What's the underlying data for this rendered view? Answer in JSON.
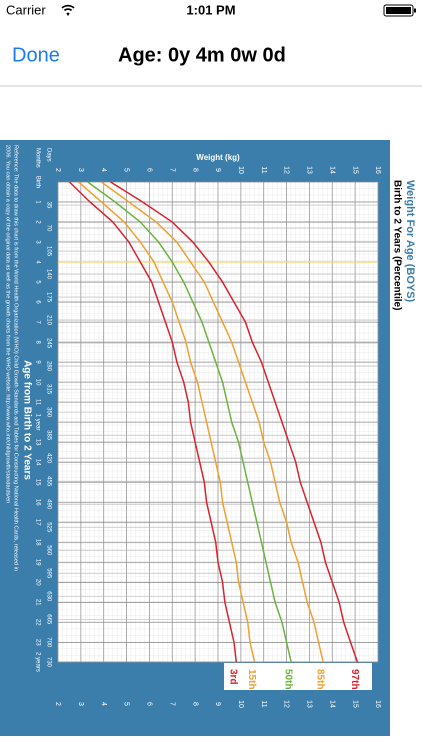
{
  "status_bar": {
    "carrier": "Carrier",
    "time": "1:01 PM"
  },
  "nav": {
    "done": "Done",
    "title": "Age: 0y 4m 0w 0d"
  },
  "chart_data": {
    "type": "line",
    "title": "Weight For Age (BOYS)",
    "subtitle": "Birth to 2 Years (Percentile)",
    "x_label": "Weight (kg)",
    "y_label": "Age from Birth to 2 Years",
    "days_label": "Days",
    "months_label": "Months",
    "note": [
      "Reference: The data to draw this chart is from the World Health Organization (WHO) Child Growth Standards and Tables for Constructing National Health Cards, released in",
      "2006. You can obtain a copy of the original data as well as the growth charts from the WHO website: http://www.who.int/childgrowth/standards/en"
    ],
    "xlim": [
      2,
      16
    ],
    "xticks": [
      2,
      3,
      4,
      5,
      6,
      7,
      8,
      9,
      10,
      11,
      12,
      13,
      14,
      15,
      16
    ],
    "ylim": [
      0,
      730
    ],
    "day_ticks": [
      35,
      70,
      105,
      140,
      175,
      210,
      245,
      280,
      315,
      350,
      385,
      420,
      455,
      490,
      525,
      560,
      595,
      630,
      665,
      700,
      730
    ],
    "month_ticks": [
      {
        "value": 0,
        "label": "Birth"
      },
      {
        "value": 30.4,
        "label": "1"
      },
      {
        "value": 60.9,
        "label": "2"
      },
      {
        "value": 91.3,
        "label": "3"
      },
      {
        "value": 121.7,
        "label": "4"
      },
      {
        "value": 152.2,
        "label": "5"
      },
      {
        "value": 182.6,
        "label": "6"
      },
      {
        "value": 213.1,
        "label": "7"
      },
      {
        "value": 243.5,
        "label": "8"
      },
      {
        "value": 273.9,
        "label": "9"
      },
      {
        "value": 304.4,
        "label": "10"
      },
      {
        "value": 334.8,
        "label": "11"
      },
      {
        "value": 365.2,
        "label": "1 year"
      },
      {
        "value": 395.7,
        "label": "13"
      },
      {
        "value": 426.1,
        "label": "14"
      },
      {
        "value": 456.6,
        "label": "15"
      },
      {
        "value": 487,
        "label": "16"
      },
      {
        "value": 517.4,
        "label": "17"
      },
      {
        "value": 547.9,
        "label": "18"
      },
      {
        "value": 578.3,
        "label": "19"
      },
      {
        "value": 608.8,
        "label": "20"
      },
      {
        "value": 639.2,
        "label": "21"
      },
      {
        "value": 669.6,
        "label": "22"
      },
      {
        "value": 700.1,
        "label": "23"
      },
      {
        "value": 730,
        "label": "2 years"
      }
    ],
    "age_days": [
      0,
      30.4,
      60.9,
      91.3,
      121.7,
      152.2,
      182.6,
      213.1,
      243.5,
      273.9,
      304.4,
      334.8,
      365.2,
      395.7,
      426.1,
      456.6,
      487,
      517.4,
      547.9,
      578.3,
      608.8,
      639.2,
      669.6,
      700.1,
      730
    ],
    "marker": {
      "age": 121.7,
      "color": "#f2d36b"
    },
    "series": [
      {
        "name": "3rd",
        "color": "#d9232e",
        "values": [
          2.5,
          3.4,
          4.4,
          5.1,
          5.6,
          6.1,
          6.4,
          6.7,
          7.0,
          7.2,
          7.5,
          7.7,
          7.8,
          8.0,
          8.2,
          8.4,
          8.5,
          8.7,
          8.9,
          9.0,
          9.2,
          9.3,
          9.5,
          9.7,
          9.8
        ]
      },
      {
        "name": "15th",
        "color": "#f0a030",
        "values": [
          2.9,
          3.9,
          4.9,
          5.6,
          6.2,
          6.6,
          7.0,
          7.3,
          7.6,
          7.8,
          8.1,
          8.3,
          8.5,
          8.7,
          8.9,
          9.1,
          9.2,
          9.4,
          9.6,
          9.8,
          9.9,
          10.1,
          10.3,
          10.4,
          10.6
        ]
      },
      {
        "name": "50th",
        "color": "#6cb33f",
        "values": [
          3.3,
          4.5,
          5.6,
          6.4,
          7.0,
          7.5,
          7.9,
          8.3,
          8.6,
          8.9,
          9.2,
          9.4,
          9.6,
          9.9,
          10.1,
          10.3,
          10.5,
          10.7,
          10.9,
          11.1,
          11.3,
          11.5,
          11.8,
          12.0,
          12.2
        ]
      },
      {
        "name": "85th",
        "color": "#f0a030",
        "values": [
          3.9,
          5.1,
          6.3,
          7.2,
          7.8,
          8.4,
          8.8,
          9.2,
          9.6,
          9.9,
          10.2,
          10.5,
          10.8,
          11.0,
          11.3,
          11.5,
          11.7,
          12.0,
          12.2,
          12.5,
          12.7,
          12.9,
          13.2,
          13.4,
          13.6
        ]
      },
      {
        "name": "97th",
        "color": "#d9232e",
        "values": [
          4.3,
          5.7,
          7.0,
          7.9,
          8.6,
          9.2,
          9.7,
          10.2,
          10.5,
          10.9,
          11.2,
          11.5,
          11.8,
          12.1,
          12.4,
          12.6,
          12.9,
          13.2,
          13.5,
          13.7,
          14.0,
          14.3,
          14.5,
          14.8,
          15.1
        ]
      }
    ]
  }
}
